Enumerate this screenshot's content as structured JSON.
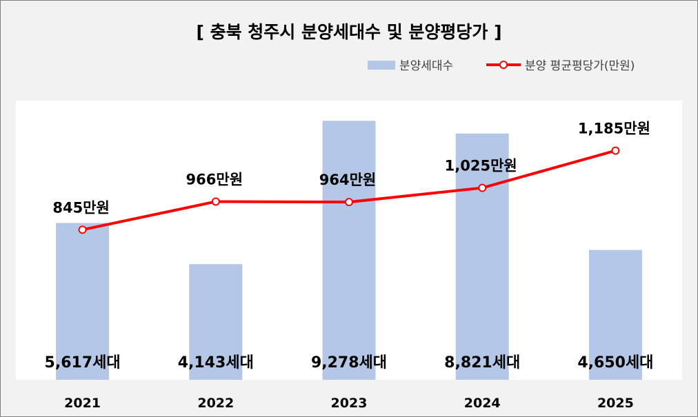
{
  "chart_data": {
    "type": "bar",
    "title": "[ 충북 청주시 분양세대수 및 분양평당가 ]",
    "categories": [
      "2021",
      "2022",
      "2023",
      "2024",
      "2025"
    ],
    "series": [
      {
        "name": "분양세대수",
        "type": "bar",
        "axis": "left",
        "values": [
          5617,
          4143,
          9278,
          8821,
          4650
        ],
        "labels": [
          "5,617세대",
          "4,143세대",
          "9,278세대",
          "8,821세대",
          "4,650세대"
        ],
        "color": "#b4c7e7"
      },
      {
        "name": "분양 평균평당가(만원)",
        "type": "line",
        "axis": "right",
        "values": [
          845,
          966,
          964,
          1025,
          1185
        ],
        "labels": [
          "845만원",
          "966만원",
          "964만원",
          "1,025만원",
          "1,185만원"
        ],
        "color": "#ff0000"
      }
    ],
    "ylim_left": [
      0,
      10000
    ],
    "ylim_right": [
      200,
      1400
    ],
    "grid": false,
    "legend": "top-right"
  }
}
